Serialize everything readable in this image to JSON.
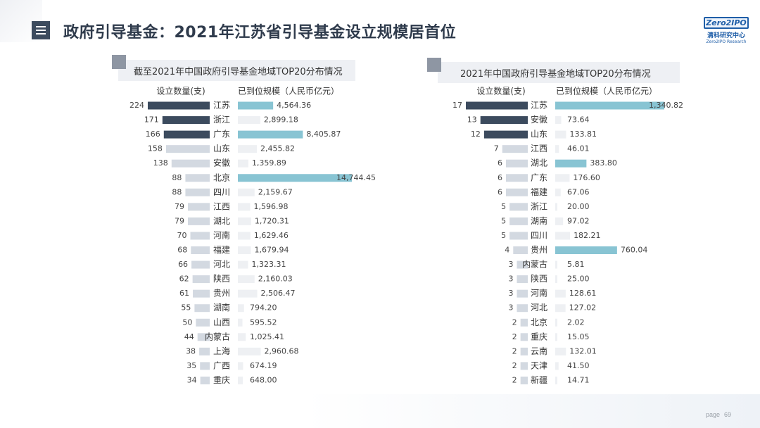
{
  "header": {
    "title": "政府引导基金：2021年江苏省引导基金设立规模居首位",
    "icon": "menu-icon"
  },
  "logo": {
    "mark": "Zero2IPO",
    "cn": "清科研究中心",
    "en": "Zero2IPO Research"
  },
  "footer": {
    "page_label": "page",
    "page_number": "69"
  },
  "colors": {
    "dark_bar": "#3c4b5e",
    "light_bar": "#d3d9e1",
    "teal_bar": "#88c4d3",
    "faint_bar": "#eef0f3"
  },
  "chart_data": [
    {
      "type": "bar",
      "title": "截至2021年中国政府引导基金地域TOP20分布情况",
      "count_label": "设立数量(支)",
      "scale_label": "已到位规模（人民币亿元）",
      "count_xlim": [
        0,
        224
      ],
      "scale_xlim": [
        0,
        14744.45
      ],
      "categories": [
        "江苏",
        "浙江",
        "广东",
        "山东",
        "安徽",
        "北京",
        "四川",
        "江西",
        "湖北",
        "河南",
        "福建",
        "河北",
        "陕西",
        "贵州",
        "湖南",
        "山西",
        "内蒙古",
        "上海",
        "广西",
        "重庆"
      ],
      "series": [
        {
          "name": "设立数量(支)",
          "values": [
            224,
            171,
            166,
            158,
            138,
            88,
            88,
            79,
            79,
            70,
            68,
            66,
            62,
            61,
            55,
            50,
            44,
            38,
            35,
            34
          ]
        },
        {
          "name": "已到位规模（人民币亿元）",
          "values": [
            4564.36,
            2899.18,
            8405.87,
            2455.82,
            1359.89,
            14744.45,
            2159.67,
            1596.98,
            1720.31,
            1629.46,
            1679.94,
            1323.31,
            2160.03,
            2506.47,
            794.2,
            595.52,
            1025.41,
            2960.68,
            674.19,
            648.0
          ]
        }
      ],
      "count_labels": [
        "224",
        "171",
        "166",
        "158",
        "138",
        "88",
        "88",
        "79",
        "79",
        "70",
        "68",
        "66",
        "62",
        "61",
        "55",
        "50",
        "44",
        "38",
        "35",
        "34"
      ],
      "scale_labels": [
        "4,564.36",
        "2,899.18",
        "8,405.87",
        "2,455.82",
        "1,359.89",
        "14,744.45",
        "2,159.67",
        "1,596.98",
        "1,720.31",
        "1,629.46",
        "1,679.94",
        "1,323.31",
        "2,160.03",
        "2,506.47",
        "794.20",
        "595.52",
        "1,025.41",
        "2,960.68",
        "674.19",
        "648.00"
      ],
      "dark_top_n": 3,
      "teal_top_n": 3
    },
    {
      "type": "bar",
      "title": "2021年中国政府引导基金地域TOP20分布情况",
      "count_label": "设立数量(支)",
      "scale_label": "已到位规模（人民币亿元）",
      "count_xlim": [
        0,
        17
      ],
      "scale_xlim": [
        0,
        1340.82
      ],
      "categories": [
        "江苏",
        "安徽",
        "山东",
        "江西",
        "湖北",
        "广东",
        "福建",
        "浙江",
        "湖南",
        "四川",
        "贵州",
        "内蒙古",
        "陕西",
        "河南",
        "河北",
        "北京",
        "重庆",
        "云南",
        "天津",
        "新疆"
      ],
      "series": [
        {
          "name": "设立数量(支)",
          "values": [
            17,
            13,
            12,
            7,
            6,
            6,
            6,
            5,
            5,
            5,
            4,
            3,
            3,
            3,
            3,
            2,
            2,
            2,
            2,
            2
          ]
        },
        {
          "name": "已到位规模（人民币亿元）",
          "values": [
            1340.82,
            73.64,
            133.81,
            46.01,
            383.8,
            176.6,
            67.06,
            20.0,
            97.02,
            182.21,
            760.04,
            5.81,
            25.0,
            128.61,
            127.02,
            2.02,
            15.05,
            132.01,
            41.5,
            14.71
          ]
        }
      ],
      "count_labels": [
        "17",
        "13",
        "12",
        "7",
        "6",
        "6",
        "6",
        "5",
        "5",
        "5",
        "4",
        "3",
        "3",
        "3",
        "3",
        "2",
        "2",
        "2",
        "2",
        "2"
      ],
      "scale_labels": [
        "1,340.82",
        "73.64",
        "133.81",
        "46.01",
        "383.80",
        "176.60",
        "67.06",
        "20.00",
        "97.02",
        "182.21",
        "760.04",
        "5.81",
        "25.00",
        "128.61",
        "127.02",
        "2.02",
        "15.05",
        "132.01",
        "41.50",
        "14.71"
      ],
      "dark_top_n": 3,
      "teal_top_n": 3
    }
  ]
}
